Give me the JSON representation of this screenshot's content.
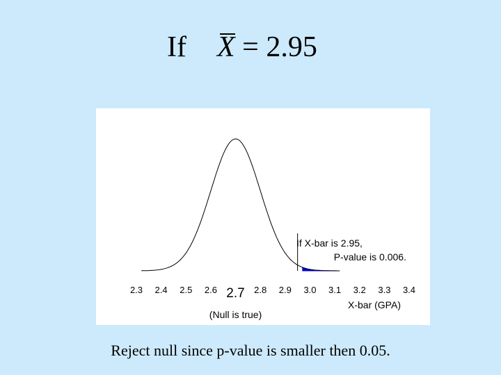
{
  "title": {
    "prefix": "If",
    "variable": "X",
    "equals": "=",
    "value": "2.95"
  },
  "chart_data": {
    "type": "area",
    "distribution": "normal",
    "mean": 2.7,
    "sd": 0.1,
    "xlim": [
      2.3,
      3.4
    ],
    "x_ticks": [
      {
        "value": 2.3,
        "label": "2.3"
      },
      {
        "value": 2.4,
        "label": "2.4"
      },
      {
        "value": 2.5,
        "label": "2.5"
      },
      {
        "value": 2.6,
        "label": "2.6"
      },
      {
        "value": 2.7,
        "label": "2.7"
      },
      {
        "value": 2.8,
        "label": "2.8"
      },
      {
        "value": 2.9,
        "label": "2.9"
      },
      {
        "value": 3.0,
        "label": "3.0"
      },
      {
        "value": 3.1,
        "label": "3.1"
      },
      {
        "value": 3.2,
        "label": "3.2"
      },
      {
        "value": 3.3,
        "label": "3.3"
      },
      {
        "value": 3.4,
        "label": "3.4"
      }
    ],
    "highlight_tick": 2.7,
    "mean_note": "(Null is true)",
    "xlabel": "X-bar (GPA)",
    "observed_value": 2.95,
    "shaded_region": {
      "from": 2.97,
      "to": 3.12,
      "color": "#0000dd"
    },
    "annotation": {
      "line1": "If X-bar is 2.95,",
      "line2": "P-value is 0.006."
    },
    "grid": false
  },
  "conclusion": "Reject null since p-value is smaller then 0.05."
}
